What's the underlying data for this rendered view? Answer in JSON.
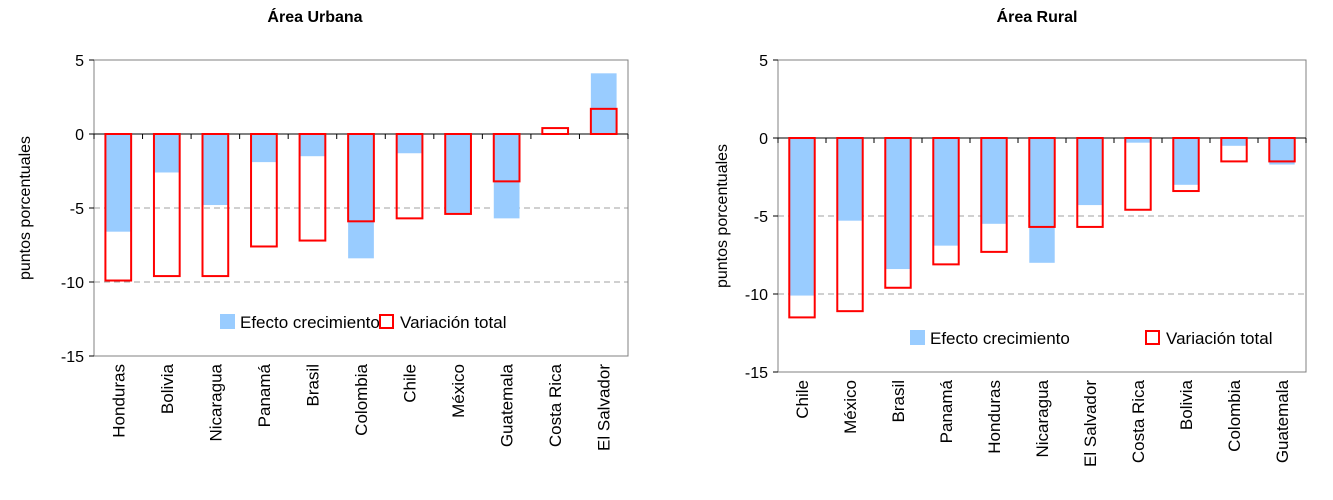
{
  "colors": {
    "growth_fill": "#99ccff",
    "total_stroke": "#ff0000",
    "plot_border": "#808080",
    "grid": "#a0a0a0"
  },
  "chart_data": [
    {
      "type": "bar",
      "title": "Área Urbana",
      "ylabel": "puntos porcentuales",
      "ylim": [
        -15,
        5
      ],
      "yticks": [
        5,
        0,
        -5,
        -10,
        -15
      ],
      "gridlines": [
        -5,
        -10
      ],
      "categories": [
        "Honduras",
        "Bolivia",
        "Nicaragua",
        "Panamá",
        "Brasil",
        "Colombia",
        "Chile",
        "México",
        "Guatemala",
        "Costa Rica",
        "El Salvador"
      ],
      "series": [
        {
          "name": "Efecto crecimiento",
          "style": "filled",
          "values": [
            -6.6,
            -2.6,
            -4.8,
            -1.9,
            -1.5,
            -8.4,
            -1.3,
            -5.4,
            -5.7,
            0.0,
            4.1
          ]
        },
        {
          "name": "Variación total",
          "style": "outline",
          "values": [
            -9.9,
            -9.6,
            -9.6,
            -7.6,
            -7.2,
            -5.9,
            -5.7,
            -5.4,
            -3.2,
            0.4,
            1.7
          ]
        }
      ],
      "legend": "bottom-right"
    },
    {
      "type": "bar",
      "title": "Área Rural",
      "ylabel": "puntos porcentuales",
      "ylim": [
        -15,
        5
      ],
      "yticks": [
        5,
        0,
        -5,
        -10,
        -15
      ],
      "gridlines": [
        -5,
        -10
      ],
      "categories": [
        "Chile",
        "México",
        "Brasil",
        "Panamá",
        "Honduras",
        "Nicaragua",
        "El Salvador",
        "Costa Rica",
        "Bolivia",
        "Colombia",
        "Guatemala"
      ],
      "series": [
        {
          "name": "Efecto crecimiento",
          "style": "filled",
          "values": [
            -10.1,
            -5.3,
            -8.4,
            -6.9,
            -5.5,
            -8.0,
            -4.3,
            -0.3,
            -3.0,
            -0.5,
            -1.7
          ]
        },
        {
          "name": "Variación total",
          "style": "outline",
          "values": [
            -11.5,
            -11.1,
            -9.6,
            -8.1,
            -7.3,
            -5.7,
            -5.7,
            -4.6,
            -3.4,
            -1.5,
            -1.5
          ]
        }
      ],
      "legend": "bottom-right"
    }
  ]
}
